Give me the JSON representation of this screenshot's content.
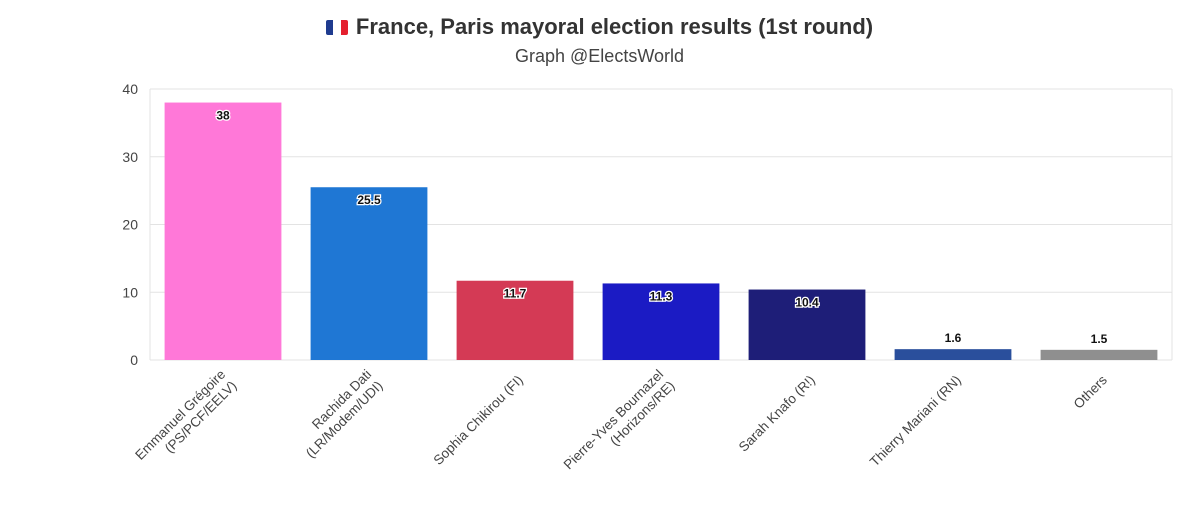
{
  "header": {
    "title": "France, Paris mayoral election results (1st round)",
    "subtitle": "Graph @ElectsWorld",
    "flag_colors": [
      "#1f3b8f",
      "#ffffff",
      "#e4202e"
    ]
  },
  "chart_data": {
    "type": "bar",
    "title": "France, Paris mayoral election results (1st round)",
    "subtitle": "Graph @ElectsWorld",
    "xlabel": "",
    "ylabel": "",
    "ylim": [
      0,
      40
    ],
    "yticks": [
      0,
      10,
      20,
      30,
      40
    ],
    "grid": true,
    "categories": [
      [
        "Emmanuel Grégoire",
        "(PS/PCF/EELV)"
      ],
      [
        "Rachida Dati",
        "(LR/Modem/UDI)"
      ],
      [
        "Sophia Chikirou (FI)"
      ],
      [
        "Pierre-Yves Bournazel",
        "(Horizons/RE)"
      ],
      [
        "Sarah Knafo (R!)"
      ],
      [
        "Thierry Mariani (RN)"
      ],
      [
        "Others"
      ]
    ],
    "values": [
      38,
      25.5,
      11.7,
      11.3,
      10.4,
      1.6,
      1.5
    ],
    "labels": [
      "38",
      "25.5",
      "11.7",
      "11.3",
      "10.4",
      "1.6",
      "1.5"
    ],
    "colors": [
      "#ff78d8",
      "#1f77d4",
      "#d43a55",
      "#1b1bc4",
      "#1e1e78",
      "#2a4f9c",
      "#8f8f8f"
    ]
  }
}
